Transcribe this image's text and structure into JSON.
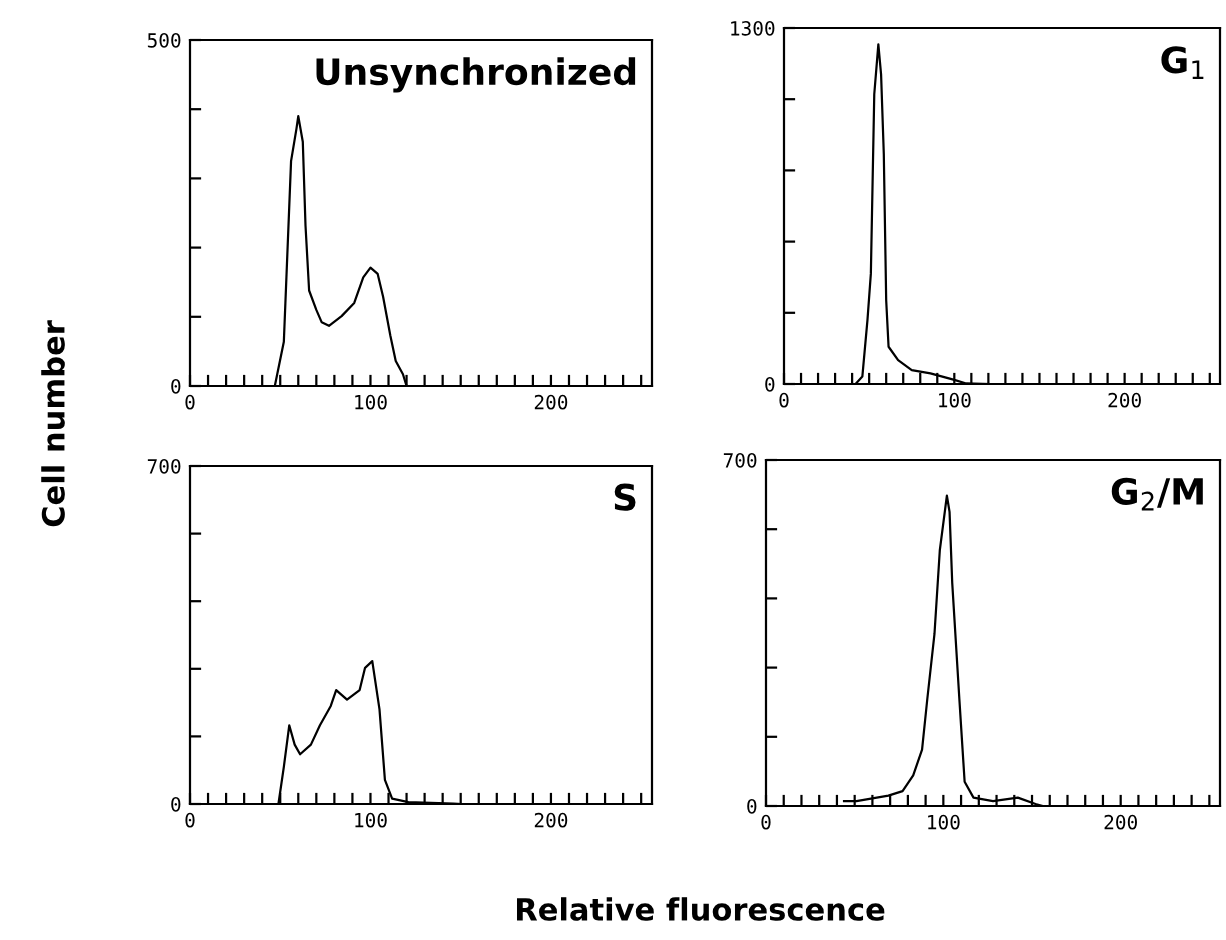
{
  "chart_data": [
    {
      "type": "line",
      "title": "Unsynchronized",
      "ylabel": "Cell number",
      "xlim": [
        0,
        256
      ],
      "ylim": [
        0,
        500
      ],
      "xticks": [
        0,
        {
          "value": 10,
          "label": null
        },
        {
          "value": 20,
          "label": null
        },
        {
          "value": 30,
          "label": null
        },
        {
          "value": 40,
          "label": null
        },
        {
          "value": 50,
          "label": null
        },
        {
          "value": 60,
          "label": null
        },
        {
          "value": 70,
          "label": null
        },
        {
          "value": 80,
          "label": null
        },
        {
          "value": 90,
          "label": null
        },
        100,
        {
          "value": 110,
          "label": null
        },
        {
          "value": 120,
          "label": null
        },
        {
          "value": 130,
          "label": null
        },
        {
          "value": 140,
          "label": null
        },
        {
          "value": 150,
          "label": null
        },
        {
          "value": 160,
          "label": null
        },
        {
          "value": 170,
          "label": null
        },
        {
          "value": 180,
          "label": null
        },
        {
          "value": 190,
          "label": null
        },
        200,
        {
          "value": 210,
          "label": null
        },
        {
          "value": 220,
          "label": null
        },
        {
          "value": 230,
          "label": null
        },
        {
          "value": 240,
          "label": null
        },
        {
          "value": 250,
          "label": null
        }
      ],
      "yticks": [
        0,
        {
          "value": 100,
          "label": null
        },
        {
          "value": 200,
          "label": null
        },
        {
          "value": 300,
          "label": null
        },
        {
          "value": 400,
          "label": null
        },
        500
      ],
      "grid": false,
      "legend": false,
      "series": [
        {
          "color": "#000000",
          "x": [
            47,
            52,
            56,
            59,
            60,
            62.5,
            64,
            66,
            70,
            73,
            77,
            84,
            91,
            96,
            100,
            104,
            107,
            111,
            114,
            118,
            120
          ],
          "values": [
            0,
            64,
            325,
            372,
            390,
            353,
            232,
            138,
            110,
            92,
            87,
            101,
            120,
            157,
            171,
            162,
            129,
            73,
            36,
            17,
            0
          ]
        }
      ]
    },
    {
      "type": "line",
      "title": "G$_{1}$",
      "xlim": [
        0,
        256
      ],
      "ylim": [
        0,
        1300
      ],
      "xticks": [
        0,
        {
          "value": 10,
          "label": null
        },
        {
          "value": 20,
          "label": null
        },
        {
          "value": 30,
          "label": null
        },
        {
          "value": 40,
          "label": null
        },
        {
          "value": 50,
          "label": null
        },
        {
          "value": 60,
          "label": null
        },
        {
          "value": 70,
          "label": null
        },
        {
          "value": 80,
          "label": null
        },
        {
          "value": 90,
          "label": null
        },
        100,
        {
          "value": 110,
          "label": null
        },
        {
          "value": 120,
          "label": null
        },
        {
          "value": 130,
          "label": null
        },
        {
          "value": 140,
          "label": null
        },
        {
          "value": 150,
          "label": null
        },
        {
          "value": 160,
          "label": null
        },
        {
          "value": 170,
          "label": null
        },
        {
          "value": 180,
          "label": null
        },
        {
          "value": 190,
          "label": null
        },
        200,
        {
          "value": 210,
          "label": null
        },
        {
          "value": 220,
          "label": null
        },
        {
          "value": 230,
          "label": null
        },
        {
          "value": 240,
          "label": null
        },
        {
          "value": 250,
          "label": null
        }
      ],
      "yticks": [
        0,
        {
          "value": 260,
          "label": null
        },
        {
          "value": 520,
          "label": null
        },
        {
          "value": 780,
          "label": null
        },
        {
          "value": 1040,
          "label": null
        },
        1300
      ],
      "grid": false,
      "legend": false,
      "series": [
        {
          "color": "#000000",
          "x": [
            42,
            46,
            49,
            51,
            53,
            55.4,
            57,
            58.6,
            60,
            61.4,
            67,
            75,
            86,
            100,
            107,
            121
          ],
          "values": [
            0,
            27,
            233,
            403,
            1058,
            1240,
            1131,
            840,
            306,
            136,
            87,
            51,
            39,
            15,
            2,
            0
          ]
        }
      ]
    },
    {
      "type": "line",
      "title": "S",
      "xlabel": "Relative fluorescence",
      "xlim": [
        0,
        256
      ],
      "ylim": [
        0,
        700
      ],
      "xticks": [
        0,
        {
          "value": 10,
          "label": null
        },
        {
          "value": 20,
          "label": null
        },
        {
          "value": 30,
          "label": null
        },
        {
          "value": 40,
          "label": null
        },
        {
          "value": 50,
          "label": null
        },
        {
          "value": 60,
          "label": null
        },
        {
          "value": 70,
          "label": null
        },
        {
          "value": 80,
          "label": null
        },
        {
          "value": 90,
          "label": null
        },
        100,
        {
          "value": 110,
          "label": null
        },
        {
          "value": 120,
          "label": null
        },
        {
          "value": 130,
          "label": null
        },
        {
          "value": 140,
          "label": null
        },
        {
          "value": 150,
          "label": null
        },
        {
          "value": 160,
          "label": null
        },
        {
          "value": 170,
          "label": null
        },
        {
          "value": 180,
          "label": null
        },
        {
          "value": 190,
          "label": null
        },
        200,
        {
          "value": 210,
          "label": null
        },
        {
          "value": 220,
          "label": null
        },
        {
          "value": 230,
          "label": null
        },
        {
          "value": 240,
          "label": null
        },
        {
          "value": 250,
          "label": null
        }
      ],
      "yticks": [
        0,
        {
          "value": 140,
          "label": null
        },
        {
          "value": 280,
          "label": null
        },
        {
          "value": 420,
          "label": null
        },
        {
          "value": 560,
          "label": null
        },
        700
      ],
      "grid": false,
      "legend": false,
      "series": [
        {
          "color": "#000000",
          "x": [
            49,
            52,
            55,
            58,
            61,
            67,
            72,
            78,
            81,
            87,
            94,
            97,
            101,
            105,
            108,
            112,
            121,
            146,
            150
          ],
          "values": [
            0,
            77,
            163,
            123,
            103,
            123,
            163,
            203,
            236,
            216,
            236,
            282,
            296,
            196,
            50,
            11,
            4,
            1,
            0
          ]
        }
      ]
    },
    {
      "type": "line",
      "title": "G$_{2}$/M",
      "xlim": [
        0,
        256
      ],
      "ylim": [
        0,
        700
      ],
      "xticks": [
        0,
        {
          "value": 10,
          "label": null
        },
        {
          "value": 20,
          "label": null
        },
        {
          "value": 30,
          "label": null
        },
        {
          "value": 40,
          "label": null
        },
        {
          "value": 50,
          "label": null
        },
        {
          "value": 60,
          "label": null
        },
        {
          "value": 70,
          "label": null
        },
        {
          "value": 80,
          "label": null
        },
        {
          "value": 90,
          "label": null
        },
        100,
        {
          "value": 110,
          "label": null
        },
        {
          "value": 120,
          "label": null
        },
        {
          "value": 130,
          "label": null
        },
        {
          "value": 140,
          "label": null
        },
        {
          "value": 150,
          "label": null
        },
        {
          "value": 160,
          "label": null
        },
        {
          "value": 170,
          "label": null
        },
        {
          "value": 180,
          "label": null
        },
        {
          "value": 190,
          "label": null
        },
        200,
        {
          "value": 210,
          "label": null
        },
        {
          "value": 220,
          "label": null
        },
        {
          "value": 230,
          "label": null
        },
        {
          "value": 240,
          "label": null
        },
        {
          "value": 250,
          "label": null
        }
      ],
      "yticks": [
        0,
        {
          "value": 140,
          "label": null
        },
        {
          "value": 280,
          "label": null
        },
        {
          "value": 420,
          "label": null
        },
        {
          "value": 560,
          "label": null
        },
        700
      ],
      "grid": false,
      "legend": false,
      "series": [
        {
          "color": "#000000",
          "x": [
            44,
            51,
            69,
            77,
            83,
            88,
            91,
            95,
            98,
            102,
            103.5,
            105,
            109,
            112,
            117,
            128,
            142,
            152,
            156
          ],
          "values": [
            10,
            10,
            21,
            30,
            62,
            114,
            218,
            348,
            517,
            628,
            595,
            452,
            218,
            49,
            17,
            10,
            17,
            4,
            0
          ]
        }
      ]
    }
  ]
}
